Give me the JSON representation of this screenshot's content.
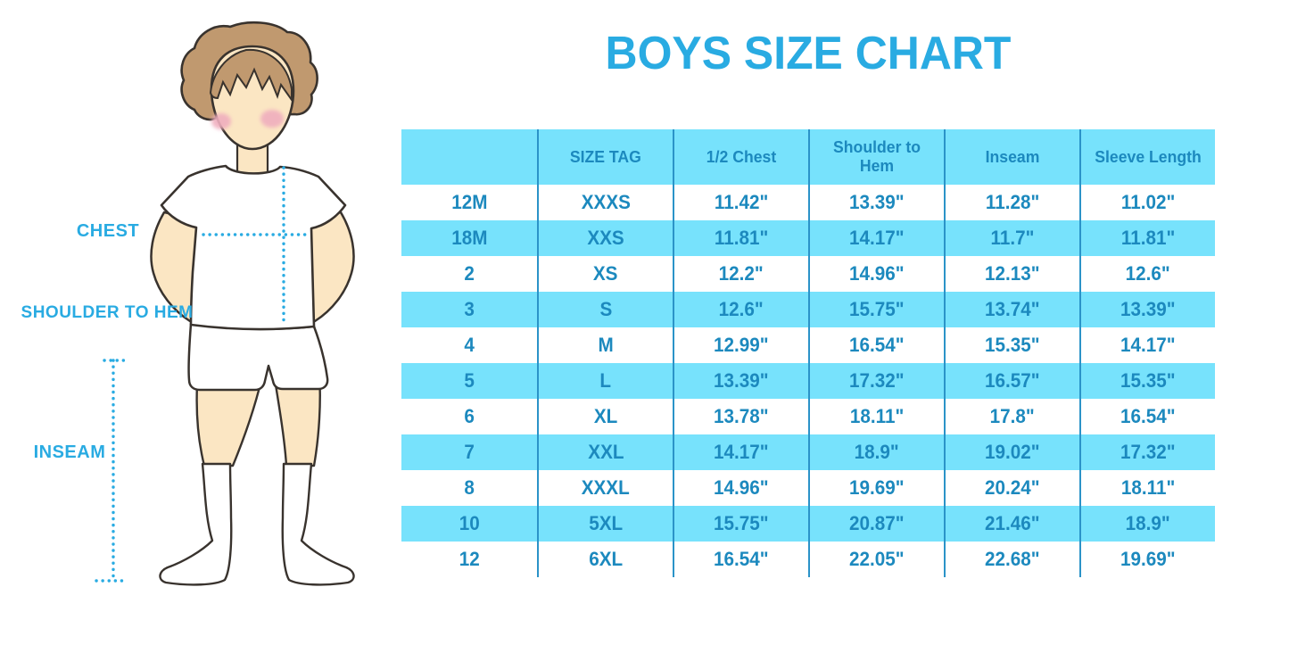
{
  "title": "BOYS SIZE CHART",
  "colors": {
    "accent": "#29ABE2",
    "cyan_fill": "#77E2FC",
    "table_text": "#1C89BE",
    "divider": "#2B93C8",
    "skin": "#FBE6C3",
    "hair": "#C0996F",
    "outline": "#39332E",
    "blush": "#EFAEBE",
    "garment_white": "#FFFFFF"
  },
  "figure": {
    "labels": {
      "chest": "CHEST",
      "shoulder_to_hem": "SHOULDER TO HEM",
      "inseam": "INSEAM"
    }
  },
  "chart_data": {
    "type": "table",
    "title": "BOYS SIZE CHART",
    "columns": [
      "",
      "SIZE TAG",
      "1/2 Chest",
      "Shoulder to Hem",
      "Inseam",
      "Sleeve Length"
    ],
    "rows": [
      [
        "12M",
        "XXXS",
        "11.42\"",
        "13.39\"",
        "11.28\"",
        "11.02\""
      ],
      [
        "18M",
        "XXS",
        "11.81\"",
        "14.17\"",
        "11.7\"",
        "11.81\""
      ],
      [
        "2",
        "XS",
        "12.2\"",
        "14.96\"",
        "12.13\"",
        "12.6\""
      ],
      [
        "3",
        "S",
        "12.6\"",
        "15.75\"",
        "13.74\"",
        "13.39\""
      ],
      [
        "4",
        "M",
        "12.99\"",
        "16.54\"",
        "15.35\"",
        "14.17\""
      ],
      [
        "5",
        "L",
        "13.39\"",
        "17.32\"",
        "16.57\"",
        "15.35\""
      ],
      [
        "6",
        "XL",
        "13.78\"",
        "18.11\"",
        "17.8\"",
        "16.54\""
      ],
      [
        "7",
        "XXL",
        "14.17\"",
        "18.9\"",
        "19.02\"",
        "17.32\""
      ],
      [
        "8",
        "XXXL",
        "14.96\"",
        "19.69\"",
        "20.24\"",
        "18.11\""
      ],
      [
        "10",
        "5XL",
        "15.75\"",
        "20.87\"",
        "21.46\"",
        "18.9\""
      ],
      [
        "12",
        "6XL",
        "16.54\"",
        "22.05\"",
        "22.68\"",
        "19.69\""
      ]
    ],
    "layout": {
      "header_fill": "cyan",
      "row_fill_pattern": "alternating white/cyan starting white",
      "column_dividers": "vertical lines only, no horizontal borders"
    }
  }
}
